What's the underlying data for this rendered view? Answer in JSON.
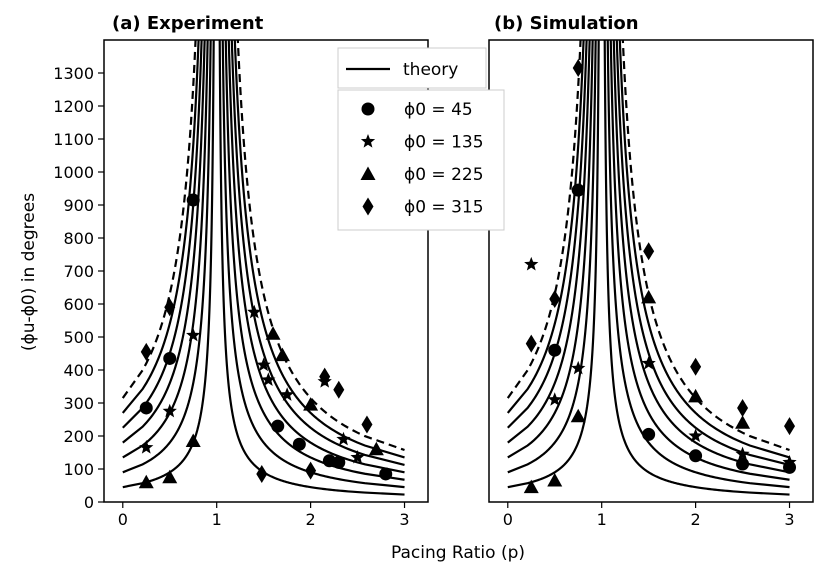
{
  "figure": {
    "xlabel": "Pacing Ratio (p)",
    "ylabel": "(ϕu-ϕ0) in degrees"
  },
  "legend": {
    "theory": "theory",
    "markers": [
      {
        "label": "ϕ0 = 45",
        "marker": "circle"
      },
      {
        "label": "ϕ0 = 135",
        "marker": "star"
      },
      {
        "label": "ϕ0 = 225",
        "marker": "triangle"
      },
      {
        "label": "ϕ0 = 315",
        "marker": "diamond"
      }
    ]
  },
  "chart_data": [
    {
      "type": "scatter",
      "title": "(a) Experiment",
      "xlabel": "Pacing Ratio (p)",
      "ylabel": "(ϕu-ϕ0) in degrees",
      "xlim": [
        -0.2,
        3.25
      ],
      "ylim": [
        0,
        1400
      ],
      "xticks": [
        0,
        1,
        2,
        3
      ],
      "yticks": [
        0,
        100,
        200,
        300,
        400,
        500,
        600,
        700,
        800,
        900,
        1000,
        1100,
        1200,
        1300
      ],
      "theory_curves": {
        "formula": "y = k / |1 - p|",
        "k_values": [
          45,
          90,
          135,
          180,
          225,
          270
        ],
        "dashed_k": 315
      },
      "series": [
        {
          "name": "ϕ0 = 45",
          "marker": "circle",
          "points": [
            [
              0.25,
              285
            ],
            [
              0.5,
              435
            ],
            [
              0.75,
              915
            ],
            [
              1.65,
              230
            ],
            [
              1.88,
              175
            ],
            [
              2.2,
              125
            ],
            [
              2.3,
              120
            ],
            [
              2.8,
              85
            ]
          ]
        },
        {
          "name": "ϕ0 = 135",
          "marker": "star",
          "points": [
            [
              0.25,
              165
            ],
            [
              0.5,
              275
            ],
            [
              0.75,
              505
            ],
            [
              1.4,
              575
            ],
            [
              1.5,
              415
            ],
            [
              1.55,
              370
            ],
            [
              1.75,
              325
            ],
            [
              2.15,
              365
            ],
            [
              2.35,
              190
            ],
            [
              2.5,
              135
            ]
          ]
        },
        {
          "name": "ϕ0 = 225",
          "marker": "triangle",
          "points": [
            [
              0.25,
              60
            ],
            [
              0.5,
              75
            ],
            [
              0.75,
              185
            ],
            [
              1.6,
              510
            ],
            [
              1.7,
              445
            ],
            [
              2.0,
              295
            ],
            [
              2.7,
              160
            ]
          ]
        },
        {
          "name": "ϕ0 = 315",
          "marker": "diamond",
          "points": [
            [
              0.25,
              455
            ],
            [
              0.5,
              590
            ],
            [
              1.48,
              85
            ],
            [
              2.0,
              95
            ],
            [
              2.15,
              380
            ],
            [
              2.3,
              340
            ],
            [
              2.6,
              235
            ]
          ]
        }
      ]
    },
    {
      "type": "scatter",
      "title": "(b) Simulation",
      "xlabel": "Pacing Ratio (p)",
      "xlim": [
        -0.2,
        3.25
      ],
      "ylim": [
        0,
        1400
      ],
      "xticks": [
        0,
        1,
        2,
        3
      ],
      "theory_curves": {
        "formula": "y = k / |1 - p|",
        "k_values": [
          45,
          90,
          135,
          180,
          225,
          270
        ],
        "dashed_k": 315
      },
      "series": [
        {
          "name": "ϕ0 = 45",
          "marker": "circle",
          "points": [
            [
              0.5,
              460
            ],
            [
              0.75,
              945
            ],
            [
              1.5,
              205
            ],
            [
              2.0,
              140
            ],
            [
              2.5,
              115
            ],
            [
              3.0,
              105
            ]
          ]
        },
        {
          "name": "ϕ0 = 135",
          "marker": "star",
          "points": [
            [
              0.25,
              720
            ],
            [
              0.5,
              310
            ],
            [
              0.75,
              405
            ],
            [
              1.5,
              420
            ],
            [
              2.0,
              200
            ],
            [
              2.5,
              145
            ],
            [
              3.0,
              120
            ]
          ]
        },
        {
          "name": "ϕ0 = 225",
          "marker": "triangle",
          "points": [
            [
              0.25,
              45
            ],
            [
              0.5,
              65
            ],
            [
              0.75,
              260
            ],
            [
              1.5,
              620
            ],
            [
              2.0,
              320
            ],
            [
              2.5,
              240
            ]
          ]
        },
        {
          "name": "ϕ0 = 315",
          "marker": "diamond",
          "points": [
            [
              0.25,
              480
            ],
            [
              0.5,
              615
            ],
            [
              0.75,
              1315
            ],
            [
              1.5,
              760
            ],
            [
              2.0,
              410
            ],
            [
              2.5,
              285
            ],
            [
              3.0,
              230
            ]
          ]
        }
      ]
    }
  ]
}
